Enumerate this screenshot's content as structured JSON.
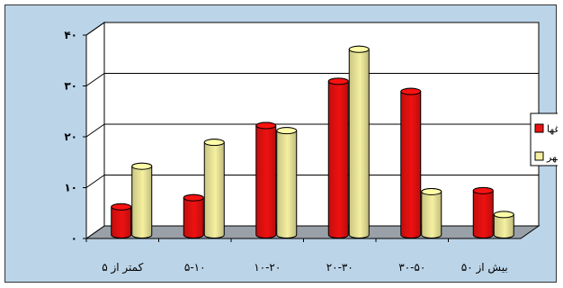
{
  "chart_data": {
    "type": "bar",
    "title": "",
    "xlabel": "",
    "ylabel": "",
    "categories": [
      "کمتر از ۵",
      "۵-۱۰",
      "۱۰-۲۰",
      "۲۰-۳۰",
      "۳۰-۵۰",
      "بیش از ۵۰"
    ],
    "y_ticks": [
      "۰",
      "۱۰",
      "۲۰",
      "۳۰",
      "۴۰"
    ],
    "ylim": [
      0,
      40
    ],
    "grid": true,
    "legend_position": "right",
    "series": [
      {
        "name": "ماغها",
        "color": "#ee1111",
        "values": [
          5.5,
          7.3,
          21.5,
          30.2,
          28.2,
          8.7
        ]
      },
      {
        "name": "شهر",
        "color": "#f5f0a0",
        "values": [
          13.5,
          18.2,
          20.5,
          36.5,
          8.5,
          4.0
        ]
      }
    ]
  },
  "colors": {
    "background": "#bbd4e8",
    "plot_wall": "#ffffff",
    "floor": "#9aa0a8"
  }
}
